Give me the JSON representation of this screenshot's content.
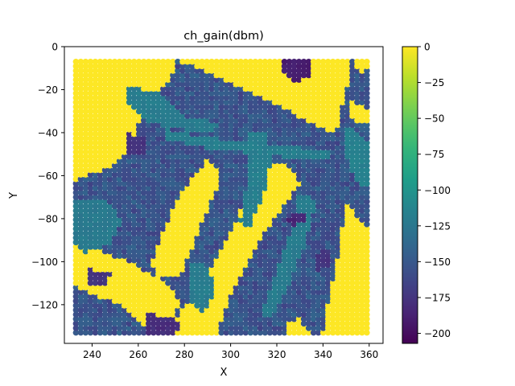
{
  "chart_data": {
    "type": "scatter",
    "title": "ch_gain(dbm)",
    "xlabel": "X",
    "ylabel": "Y",
    "xlim": [
      228,
      366
    ],
    "ylim": [
      -138,
      0
    ],
    "xticks": [
      240,
      260,
      280,
      300,
      320,
      340,
      360
    ],
    "yticks": [
      0,
      -20,
      -40,
      -60,
      -80,
      -100,
      -120
    ],
    "grid": false,
    "marker": "filled circles on a dense lattice",
    "grid_spacing": 2.1,
    "x_range": [
      233,
      360
    ],
    "y_range": [
      -133,
      -5
    ],
    "value_label": "ch_gain (dBm)",
    "colormap": "viridis",
    "colorbar": {
      "min": -207,
      "max": 0,
      "ticks": [
        0,
        -25,
        -50,
        -75,
        -100,
        -125,
        -150,
        -175,
        -200
      ]
    },
    "regions": [
      {
        "name": "yellow",
        "value": 0,
        "polygon": [
          [
            233,
            -5
          ],
          [
            276,
            -5
          ],
          [
            276,
            -12
          ],
          [
            262,
            -30
          ],
          [
            258,
            -45
          ],
          [
            248,
            -56
          ],
          [
            233,
            -62
          ]
        ]
      },
      {
        "name": "yellow",
        "value": 0,
        "polygon": [
          [
            338,
            -5
          ],
          [
            352,
            -5
          ],
          [
            352,
            -14
          ],
          [
            349,
            -24
          ],
          [
            347,
            -36
          ],
          [
            344,
            -40
          ],
          [
            339,
            -38
          ],
          [
            324,
            -29
          ],
          [
            303,
            -18
          ],
          [
            279,
            -7
          ]
        ]
      },
      {
        "name": "yellow",
        "value": 0,
        "polygon": [
          [
            352,
            -5
          ],
          [
            360,
            -5
          ],
          [
            360,
            -10
          ],
          [
            356,
            -12
          ]
        ]
      },
      {
        "name": "yellow",
        "value": 0,
        "polygon": [
          [
            289,
            -5
          ],
          [
            300,
            -5
          ],
          [
            298,
            -14
          ],
          [
            292,
            -10
          ]
        ]
      },
      {
        "name": "yellow",
        "value": 0,
        "polygon": [
          [
            352,
            -24
          ],
          [
            360,
            -30
          ],
          [
            360,
            -34
          ],
          [
            353,
            -37
          ]
        ]
      },
      {
        "name": "yellow",
        "value": 0,
        "polygon": [
          [
            286,
            -58
          ],
          [
            290,
            -52
          ],
          [
            295,
            -58
          ],
          [
            294,
            -67
          ],
          [
            289,
            -78
          ],
          [
            284,
            -92
          ],
          [
            278,
            -107
          ],
          [
            268,
            -108
          ],
          [
            266,
            -100
          ],
          [
            271,
            -86
          ],
          [
            276,
            -72
          ],
          [
            282,
            -63
          ]
        ]
      },
      {
        "name": "yellow",
        "value": 0,
        "polygon": [
          [
            313,
            -57
          ],
          [
            317,
            -54
          ],
          [
            324,
            -55
          ],
          [
            329,
            -59
          ],
          [
            330,
            -64
          ],
          [
            324,
            -73
          ],
          [
            316,
            -84
          ],
          [
            306,
            -103
          ],
          [
            298,
            -121
          ],
          [
            294,
            -133
          ],
          [
            271,
            -133
          ],
          [
            276,
            -127
          ],
          [
            288,
            -110
          ],
          [
            297,
            -92
          ],
          [
            305,
            -75
          ]
        ]
      },
      {
        "name": "yellow",
        "value": 0,
        "polygon": [
          [
            350,
            -72
          ],
          [
            356,
            -80
          ],
          [
            360,
            -86
          ],
          [
            360,
            -133
          ],
          [
            340,
            -133
          ],
          [
            343,
            -115
          ],
          [
            347,
            -95
          ]
        ]
      },
      {
        "name": "yellow",
        "value": 0,
        "polygon": [
          [
            233,
            -87
          ],
          [
            244,
            -95
          ],
          [
            256,
            -100
          ],
          [
            267,
            -107
          ],
          [
            275,
            -112
          ],
          [
            278,
            -120
          ],
          [
            274,
            -128
          ],
          [
            266,
            -132
          ],
          [
            258,
            -125
          ],
          [
            252,
            -120
          ],
          [
            240,
            -115
          ],
          [
            233,
            -112
          ]
        ]
      },
      {
        "name": "yellow",
        "value": 0,
        "polygon": [
          [
            288,
            -124
          ],
          [
            290,
            -130
          ],
          [
            288,
            -133
          ],
          [
            282,
            -133
          ],
          [
            284,
            -128
          ]
        ]
      },
      {
        "name": "yellow",
        "value": 0,
        "polygon": [
          [
            324,
            -128
          ],
          [
            330,
            -126
          ],
          [
            334,
            -133
          ],
          [
            324,
            -133
          ]
        ]
      },
      {
        "name": "teal",
        "value": -118,
        "polygon": [
          [
            271,
            -38
          ],
          [
            290,
            -42
          ],
          [
            320,
            -46
          ],
          [
            344,
            -48
          ],
          [
            344,
            -53
          ],
          [
            320,
            -51
          ],
          [
            290,
            -47
          ],
          [
            271,
            -43
          ]
        ]
      },
      {
        "name": "teal",
        "value": -120,
        "polygon": [
          [
            256,
            -18
          ],
          [
            270,
            -22
          ],
          [
            280,
            -32
          ],
          [
            290,
            -34
          ],
          [
            295,
            -37
          ],
          [
            290,
            -40
          ],
          [
            276,
            -38
          ],
          [
            262,
            -34
          ],
          [
            256,
            -26
          ]
        ]
      },
      {
        "name": "teal",
        "value": -118,
        "polygon": [
          [
            307,
            -40
          ],
          [
            316,
            -40
          ],
          [
            318,
            -52
          ],
          [
            314,
            -70
          ],
          [
            308,
            -85
          ],
          [
            304,
            -81
          ],
          [
            308,
            -60
          ]
        ]
      },
      {
        "name": "teal",
        "value": -116,
        "polygon": [
          [
            350,
            -36
          ],
          [
            360,
            -44
          ],
          [
            360,
            -66
          ],
          [
            354,
            -62
          ],
          [
            350,
            -50
          ]
        ]
      },
      {
        "name": "teal",
        "value": -120,
        "polygon": [
          [
            330,
            -67
          ],
          [
            337,
            -72
          ],
          [
            333,
            -90
          ],
          [
            325,
            -112
          ],
          [
            318,
            -126
          ],
          [
            313,
            -125
          ],
          [
            320,
            -105
          ],
          [
            326,
            -86
          ]
        ]
      },
      {
        "name": "teal",
        "value": -122,
        "polygon": [
          [
            233,
            -72
          ],
          [
            246,
            -70
          ],
          [
            253,
            -80
          ],
          [
            248,
            -92
          ],
          [
            236,
            -96
          ],
          [
            233,
            -92
          ]
        ]
      },
      {
        "name": "teal",
        "value": -120,
        "polygon": [
          [
            283,
            -100
          ],
          [
            291,
            -102
          ],
          [
            293,
            -115
          ],
          [
            288,
            -124
          ],
          [
            282,
            -118
          ]
        ]
      },
      {
        "name": "dark",
        "value": -190,
        "polygon": [
          [
            324,
            -5
          ],
          [
            336,
            -5
          ],
          [
            335,
            -14
          ],
          [
            328,
            -16
          ],
          [
            321,
            -11
          ]
        ]
      },
      {
        "name": "dark",
        "value": -185,
        "polygon": [
          [
            327,
            -77
          ],
          [
            333,
            -78
          ],
          [
            333,
            -82
          ],
          [
            327,
            -83
          ],
          [
            324,
            -81
          ]
        ]
      },
      {
        "name": "dark",
        "value": -180,
        "polygon": [
          [
            264,
            -124
          ],
          [
            278,
            -127
          ],
          [
            277,
            -133
          ],
          [
            264,
            -133
          ]
        ]
      },
      {
        "name": "dark",
        "value": -178,
        "polygon": [
          [
            256,
            -40
          ],
          [
            264,
            -43
          ],
          [
            262,
            -51
          ],
          [
            255,
            -50
          ]
        ]
      },
      {
        "name": "dark",
        "value": -176,
        "polygon": [
          [
            238,
            -103
          ],
          [
            248,
            -105
          ],
          [
            246,
            -112
          ],
          [
            238,
            -110
          ]
        ]
      },
      {
        "name": "dark",
        "value": -176,
        "polygon": [
          [
            336,
            -97
          ],
          [
            344,
            -93
          ],
          [
            342,
            -103
          ],
          [
            336,
            -104
          ]
        ]
      }
    ]
  }
}
